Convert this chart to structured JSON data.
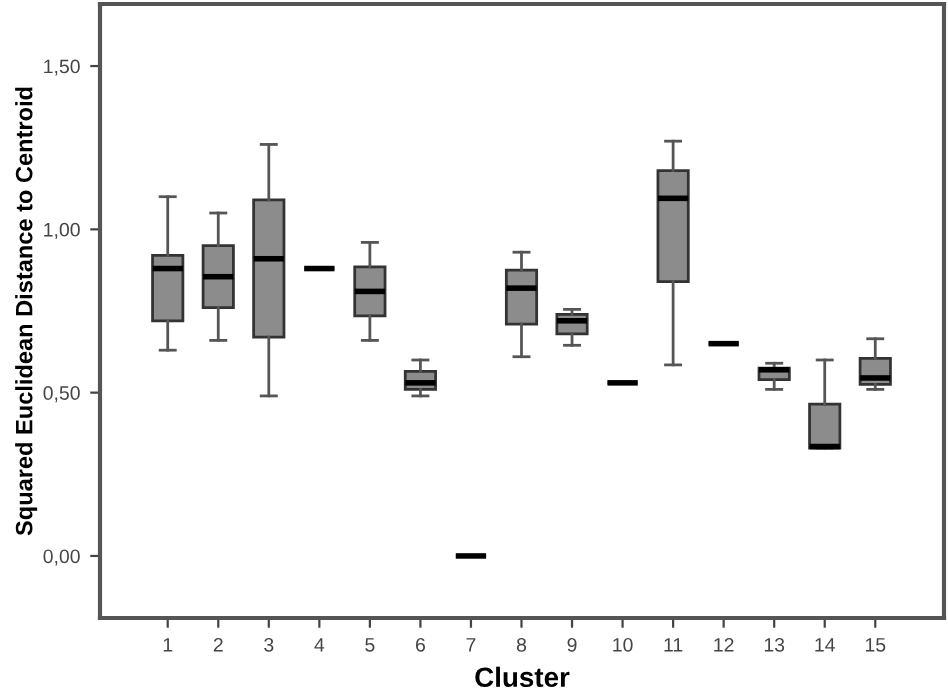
{
  "chart_data": {
    "type": "box",
    "xlabel": "Cluster",
    "ylabel": "Squared Euclidean Distance to Centroid",
    "categories": [
      "1",
      "2",
      "3",
      "4",
      "5",
      "6",
      "7",
      "8",
      "9",
      "10",
      "11",
      "12",
      "13",
      "14",
      "15"
    ],
    "color": "#8c8c8c",
    "boxes": [
      {
        "low": 0.63,
        "q1": 0.72,
        "median": 0.88,
        "q3": 0.92,
        "high": 1.1
      },
      {
        "low": 0.66,
        "q1": 0.76,
        "median": 0.855,
        "q3": 0.95,
        "high": 1.05
      },
      {
        "low": 0.49,
        "q1": 0.67,
        "median": 0.91,
        "q3": 1.09,
        "high": 1.26
      },
      {
        "low": 0.88,
        "q1": 0.88,
        "median": 0.88,
        "q3": 0.88,
        "high": 0.88
      },
      {
        "low": 0.66,
        "q1": 0.735,
        "median": 0.81,
        "q3": 0.885,
        "high": 0.96
      },
      {
        "low": 0.49,
        "q1": 0.51,
        "median": 0.53,
        "q3": 0.565,
        "high": 0.6
      },
      {
        "low": 0.0,
        "q1": 0.0,
        "median": 0.0,
        "q3": 0.0,
        "high": 0.0
      },
      {
        "low": 0.61,
        "q1": 0.71,
        "median": 0.82,
        "q3": 0.875,
        "high": 0.93
      },
      {
        "low": 0.645,
        "q1": 0.68,
        "median": 0.72,
        "q3": 0.74,
        "high": 0.755
      },
      {
        "low": 0.53,
        "q1": 0.53,
        "median": 0.53,
        "q3": 0.53,
        "high": 0.53
      },
      {
        "low": 0.585,
        "q1": 0.84,
        "median": 1.095,
        "q3": 1.18,
        "high": 1.27
      },
      {
        "low": 0.65,
        "q1": 0.65,
        "median": 0.65,
        "q3": 0.65,
        "high": 0.65
      },
      {
        "low": 0.51,
        "q1": 0.54,
        "median": 0.57,
        "q3": 0.575,
        "high": 0.59
      },
      {
        "low": 0.33,
        "q1": 0.33,
        "median": 0.335,
        "q3": 0.465,
        "high": 0.6
      },
      {
        "low": 0.51,
        "q1": 0.525,
        "median": 0.545,
        "q3": 0.605,
        "high": 0.665
      }
    ],
    "ylim": [
      -0.19,
      1.69
    ],
    "yticks": [
      {
        "value": 0,
        "label": "0,00"
      },
      {
        "value": 0.5,
        "label": "0,50"
      },
      {
        "value": 1.0,
        "label": "1,00"
      },
      {
        "value": 1.5,
        "label": "1,50"
      }
    ],
    "grid": false,
    "legend": false
  }
}
